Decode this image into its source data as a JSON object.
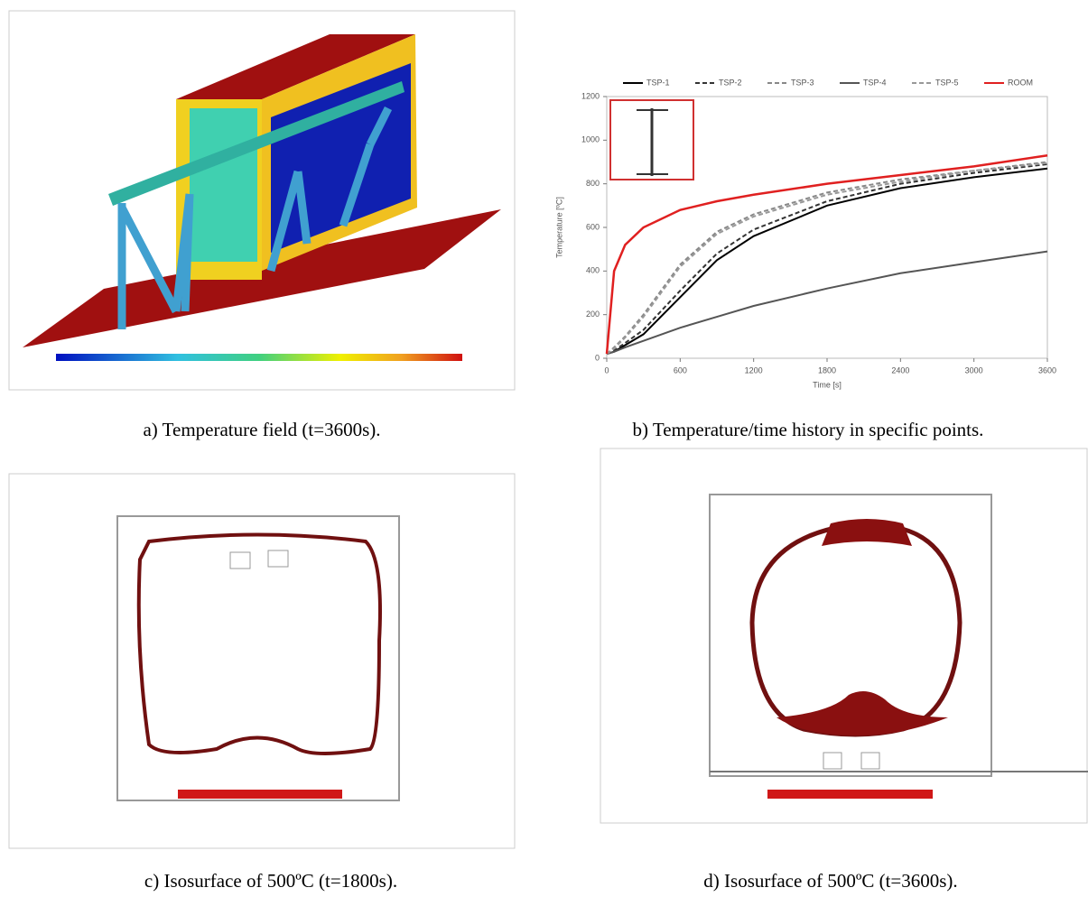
{
  "figure": {
    "captions": [
      "a) Temperature field (t=3600s).",
      "b) Temperature/time history in specific points.",
      "c) Isosurface of 500ºC (t=1800s).",
      "d) Isosurface of 500ºC (t=3600s)."
    ]
  },
  "chart_data": {
    "type": "line",
    "x_label": "Time [s]",
    "y_label": "Temperature [ºC]",
    "x": [
      0,
      60,
      150,
      300,
      600,
      900,
      1200,
      1800,
      2400,
      3000,
      3600
    ],
    "series": [
      {
        "name": "TSP-1",
        "color": "#000000",
        "dash": false,
        "values": [
          20,
          30,
          60,
          110,
          280,
          450,
          560,
          700,
          780,
          830,
          870
        ]
      },
      {
        "name": "TSP-2",
        "color": "#333333",
        "dash": true,
        "values": [
          20,
          35,
          70,
          130,
          310,
          480,
          590,
          720,
          800,
          850,
          890
        ]
      },
      {
        "name": "TSP-3",
        "color": "#888888",
        "dash": true,
        "values": [
          20,
          50,
          100,
          200,
          430,
          580,
          660,
          760,
          820,
          860,
          900
        ]
      },
      {
        "name": "TSP-4",
        "color": "#555555",
        "dash": false,
        "values": [
          20,
          30,
          50,
          80,
          140,
          190,
          240,
          320,
          390,
          440,
          490
        ]
      },
      {
        "name": "TSP-5",
        "color": "#999999",
        "dash": true,
        "values": [
          20,
          45,
          95,
          190,
          420,
          570,
          650,
          750,
          810,
          860,
          895
        ]
      },
      {
        "name": "ROOM",
        "color": "#e02020",
        "dash": false,
        "values": [
          20,
          400,
          520,
          600,
          680,
          720,
          750,
          800,
          840,
          880,
          930
        ]
      }
    ],
    "xlim": [
      0,
      3600
    ],
    "xticks": [
      0,
      600,
      1200,
      1800,
      2400,
      3000,
      3600
    ],
    "ylim": [
      0,
      1200
    ],
    "yticks": [
      0,
      200,
      400,
      600,
      800,
      1000,
      1200
    ]
  }
}
